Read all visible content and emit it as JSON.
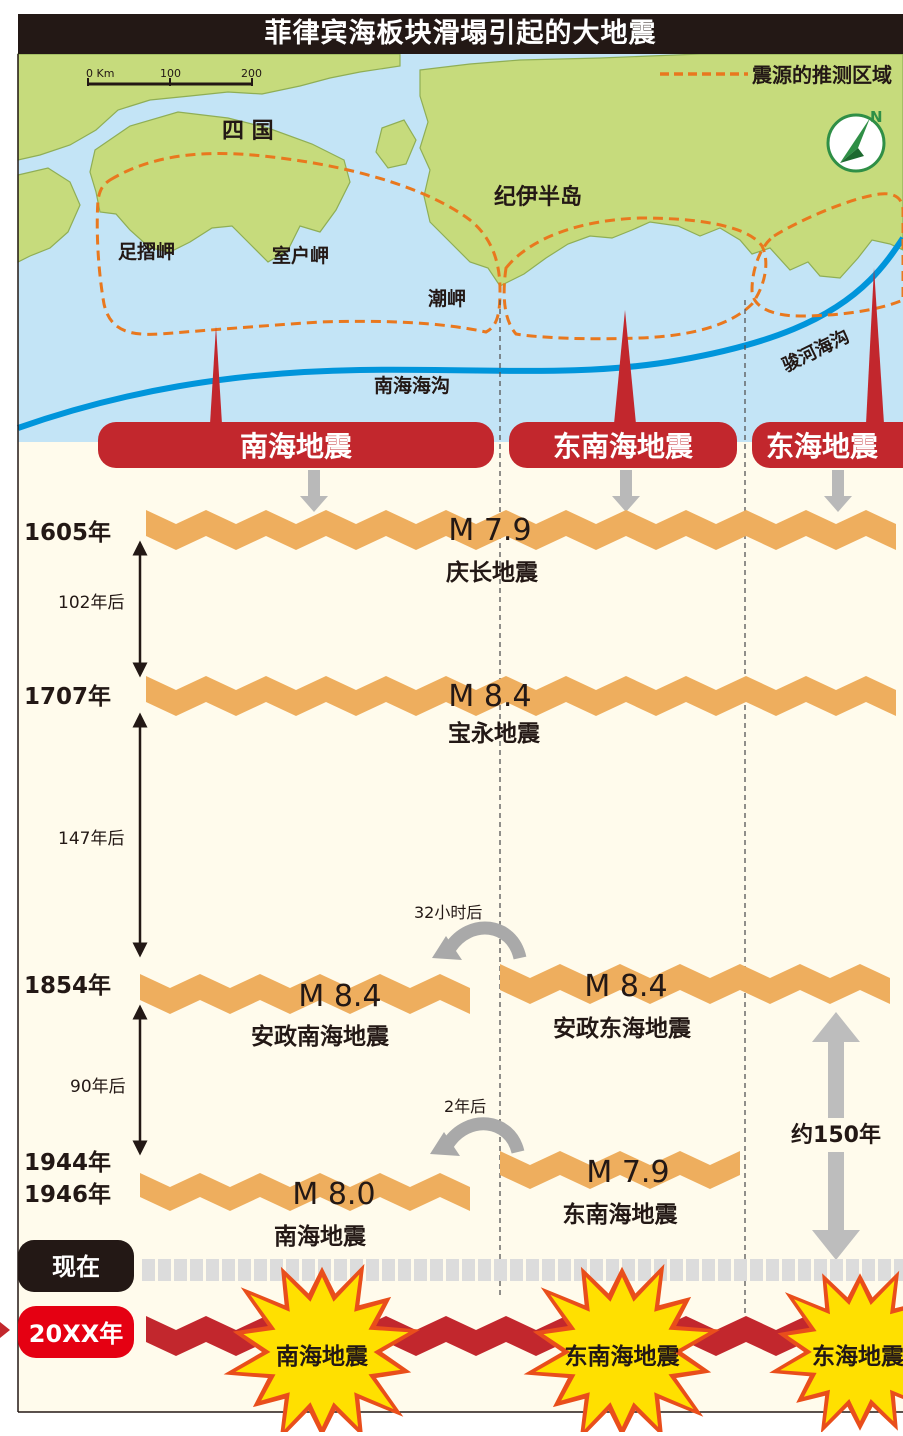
{
  "title": "菲律宾海板块滑塌引起的大地震",
  "map": {
    "scale": {
      "unit": "0 Km",
      "mid": "100",
      "end": "200"
    },
    "legend": "震源的推测区域",
    "places": {
      "shikoku": "四 国",
      "kii": "纪伊半岛",
      "ashizuri": "足摺岬",
      "muroto": "室户岬",
      "shiono": "潮岬"
    },
    "trenches": {
      "nankai": "南海海沟",
      "suruga": "骏河海沟"
    }
  },
  "zones": {
    "nankai": "南海地震",
    "tonankai": "东南海地震",
    "tokai": "东海地震"
  },
  "events": {
    "e1605": {
      "year": "1605年",
      "magnitude": "M 7.9",
      "name": "庆长地震"
    },
    "e1707": {
      "year": "1707年",
      "magnitude": "M 8.4",
      "name": "宝永地震"
    },
    "e1854": {
      "year": "1854年",
      "mag_west": "M 8.4",
      "name_west": "安政南海地震",
      "mag_east": "M 8.4",
      "name_east": "安政东海地震",
      "lag": "32小时后"
    },
    "e1944": {
      "year1": "1944年",
      "year2": "1946年",
      "mag_west": "M 8.0",
      "name_west": "南海地震",
      "mag_east": "M 7.9",
      "name_east": "东南海地震",
      "lag": "2年后"
    }
  },
  "intervals": {
    "i1": "102年后",
    "i2": "147年后",
    "i3": "90年后",
    "tokai_gap": "约150年"
  },
  "now": "现在",
  "future": {
    "year": "20XX年",
    "nankai": "南海地震",
    "tonankai": "东南海地震",
    "tokai": "东海地震"
  },
  "colors": {
    "sea": "#c3e4f6",
    "land": "#c6db7c",
    "timeline": "#eeae5e",
    "red": "#c2272d",
    "dashed": "#e9781e",
    "panel": "#fffbec"
  }
}
